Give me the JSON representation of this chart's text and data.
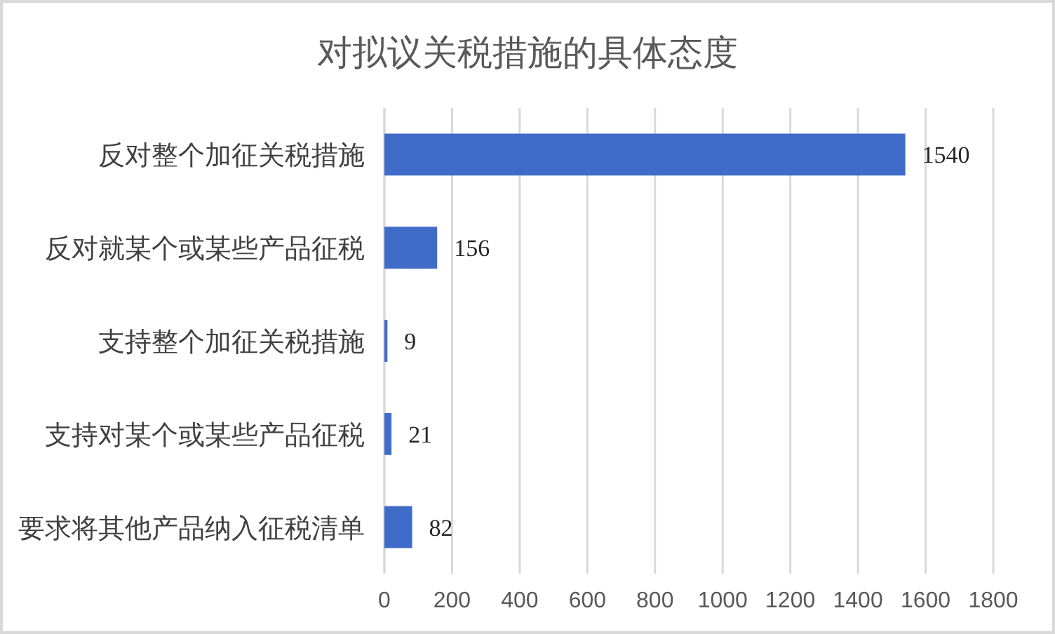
{
  "chart_data": {
    "type": "bar",
    "orientation": "horizontal",
    "title": "对拟议关税措施的具体态度",
    "categories": [
      "反对整个加征关税措施",
      "反对就某个或某些产品征税",
      "支持整个加征关税措施",
      "支持对某个或某些产品征税",
      "要求将其他产品纳入征税清单"
    ],
    "values": [
      1540,
      156,
      9,
      21,
      82
    ],
    "color": "#3f6cc9",
    "xlim": [
      0,
      1800
    ],
    "xticks": [
      0,
      200,
      400,
      600,
      800,
      1000,
      1200,
      1400,
      1600,
      1800
    ],
    "grid": "x",
    "data_labels": true
  }
}
